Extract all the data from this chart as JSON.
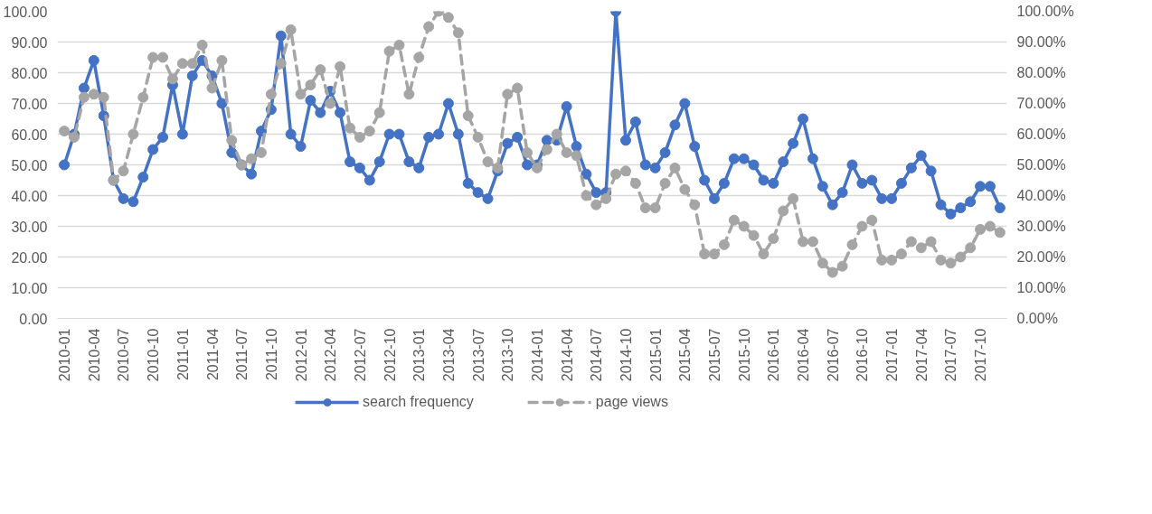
{
  "chart_data": {
    "type": "line",
    "categories": [
      "2010-01",
      null,
      null,
      "2010-04",
      null,
      null,
      "2010-07",
      null,
      null,
      "2010-10",
      null,
      null,
      "2011-01",
      null,
      null,
      "2011-04",
      null,
      null,
      "2011-07",
      null,
      null,
      "2011-10",
      null,
      null,
      "2012-01",
      null,
      null,
      "2012-04",
      null,
      null,
      "2012-07",
      null,
      null,
      "2012-10",
      null,
      null,
      "2013-01",
      null,
      null,
      "2013-04",
      null,
      null,
      "2013-07",
      null,
      null,
      "2013-10",
      null,
      null,
      "2014-01",
      null,
      null,
      "2014-04",
      null,
      null,
      "2014-07",
      null,
      null,
      "2014-10",
      null,
      null,
      "2015-01",
      null,
      null,
      "2015-04",
      null,
      null,
      "2015-07",
      null,
      null,
      "2015-10",
      null,
      null,
      "2016-01",
      null,
      null,
      "2016-04",
      null,
      null,
      "2016-07",
      null,
      null,
      "2016-10",
      null,
      null,
      "2017-01",
      null,
      null,
      "2017-04",
      null,
      null,
      "2017-07",
      null,
      null,
      "2017-10",
      null,
      null
    ],
    "series": [
      {
        "name": "search frequency",
        "color": "#4472c4",
        "line_style": "solid",
        "values": [
          50,
          60,
          75,
          84,
          66,
          45,
          39,
          38,
          46,
          55,
          59,
          76,
          60,
          79,
          84,
          79,
          70,
          54,
          50,
          47,
          61,
          68,
          92,
          60,
          56,
          71,
          67,
          74,
          67,
          51,
          49,
          45,
          51,
          60,
          60,
          51,
          49,
          59,
          60,
          70,
          60,
          44,
          41,
          39,
          48,
          57,
          59,
          50,
          50,
          58,
          58,
          69,
          56,
          47,
          41,
          41,
          100,
          58,
          64,
          50,
          49,
          54,
          63,
          70,
          56,
          45,
          39,
          44,
          52,
          52,
          50,
          45,
          44,
          51,
          57,
          65,
          52,
          43,
          37,
          41,
          50,
          44,
          45,
          39,
          39,
          44,
          49,
          53,
          48,
          37,
          34,
          36,
          38,
          43,
          43,
          36
        ]
      },
      {
        "name": "page views",
        "color": "#a5a5a5",
        "line_style": "dashed",
        "axis": "y2",
        "values": [
          61,
          59,
          72,
          73,
          72,
          45,
          48,
          60,
          72,
          85,
          85,
          78,
          83,
          83,
          89,
          75,
          84,
          58,
          50,
          52,
          54,
          73,
          83,
          94,
          73,
          76,
          81,
          70,
          82,
          62,
          59,
          61,
          67,
          87,
          89,
          73,
          85,
          95,
          100,
          98,
          93,
          66,
          59,
          51,
          49,
          73,
          75,
          54,
          49,
          55,
          60,
          54,
          53,
          40,
          37,
          39,
          47,
          48,
          44,
          36,
          36,
          44,
          49,
          42,
          37,
          21,
          21,
          24,
          32,
          30,
          27,
          21,
          26,
          35,
          39,
          25,
          25,
          18,
          15,
          17,
          24,
          30,
          32,
          19,
          19,
          21,
          25,
          23,
          25,
          19,
          18,
          20,
          23,
          29,
          30,
          28
        ]
      }
    ],
    "ylim": [
      0,
      100
    ],
    "yticks": [
      {
        "value": 0,
        "label": "0.00"
      },
      {
        "value": 10,
        "label": "10.00"
      },
      {
        "value": 20,
        "label": "20.00"
      },
      {
        "value": 30,
        "label": "30.00"
      },
      {
        "value": 40,
        "label": "40.00"
      },
      {
        "value": 50,
        "label": "50.00"
      },
      {
        "value": 60,
        "label": "60.00"
      },
      {
        "value": 70,
        "label": "70.00"
      },
      {
        "value": 80,
        "label": "80.00"
      },
      {
        "value": 90,
        "label": "90.00"
      },
      {
        "value": 100,
        "label": "100.00"
      }
    ],
    "y2lim": [
      0,
      100
    ],
    "y2ticks": [
      {
        "value": 0,
        "label": "0.00%"
      },
      {
        "value": 10,
        "label": "10.00%"
      },
      {
        "value": 20,
        "label": "20.00%"
      },
      {
        "value": 30,
        "label": "30.00%"
      },
      {
        "value": 40,
        "label": "40.00%"
      },
      {
        "value": 50,
        "label": "50.00%"
      },
      {
        "value": 60,
        "label": "60.00%"
      },
      {
        "value": 70,
        "label": "70.00%"
      },
      {
        "value": 80,
        "label": "80.00%"
      },
      {
        "value": 90,
        "label": "90.00%"
      },
      {
        "value": 100,
        "label": "100.00%"
      }
    ],
    "grid": "y",
    "legend": "bottom",
    "marker": "circle"
  }
}
